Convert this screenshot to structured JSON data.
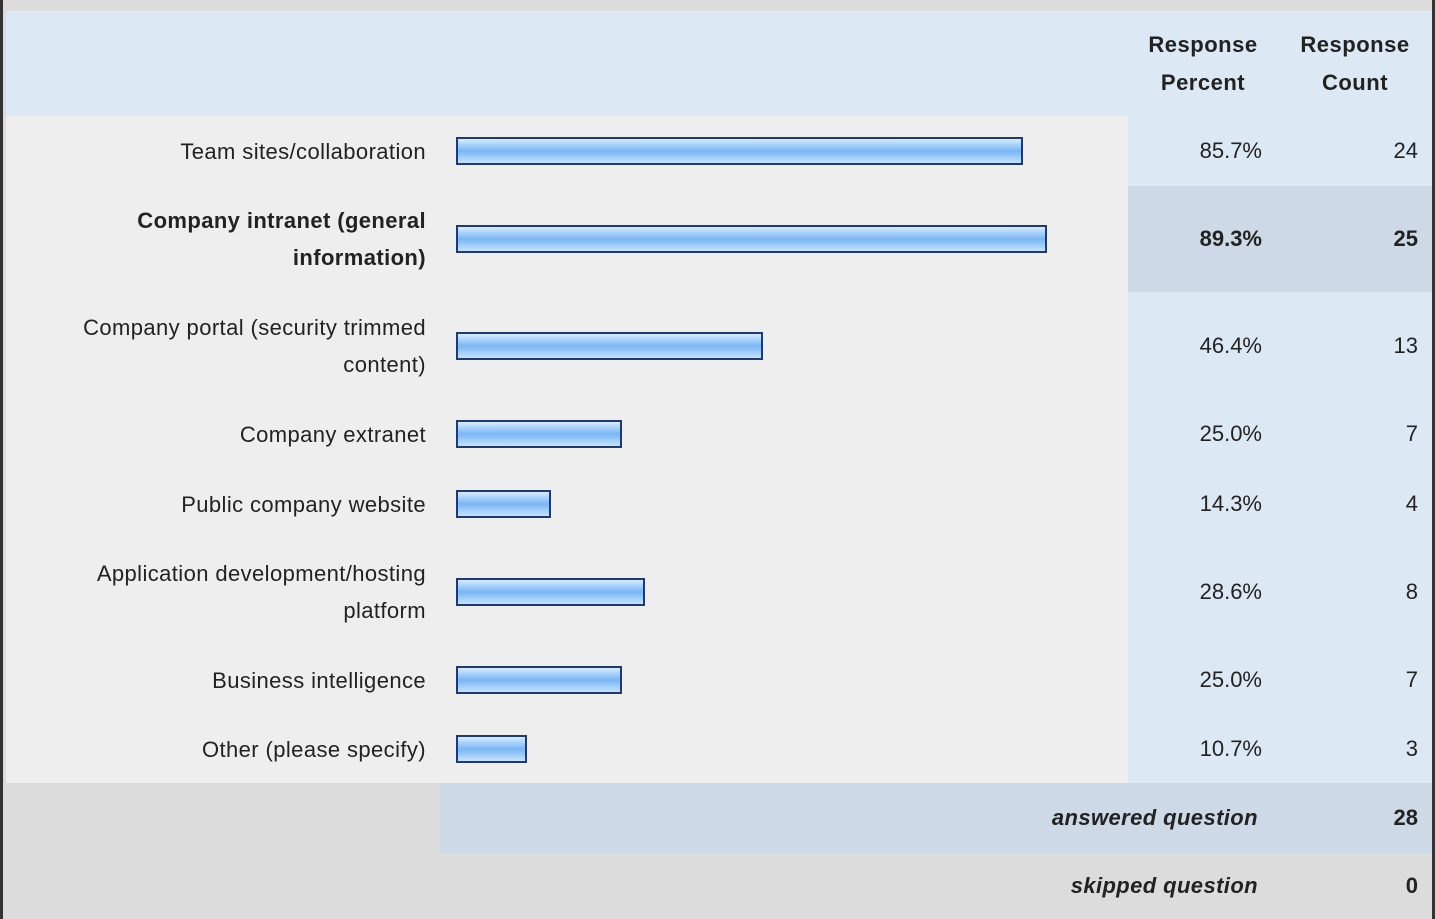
{
  "header": {
    "percent_label_line1": "Response",
    "percent_label_line2": "Percent",
    "count_label_line1": "Response",
    "count_label_line2": "Count"
  },
  "chart_data": {
    "type": "bar",
    "orientation": "horizontal",
    "xlim": [
      0,
      100
    ],
    "categories": [
      "Team sites/collaboration",
      "Company intranet (general information)",
      "Company portal (security trimmed content)",
      "Company extranet",
      "Public company website",
      "Application development/hosting platform",
      "Business intelligence",
      "Other (please specify)"
    ],
    "percent_values": [
      85.7,
      89.3,
      46.4,
      25.0,
      14.3,
      28.6,
      25.0,
      10.7
    ],
    "rows": [
      {
        "label": "Team sites/collaboration",
        "percent": "85.7%",
        "count": "24",
        "highlight": false
      },
      {
        "label_line1": "Company intranet (general",
        "label_line2": "information)",
        "percent": "89.3%",
        "count": "25",
        "highlight": true
      },
      {
        "label_line1": "Company portal (security trimmed",
        "label_line2": "content)",
        "percent": "46.4%",
        "count": "13",
        "highlight": false
      },
      {
        "label": "Company extranet",
        "percent": "25.0%",
        "count": "7",
        "highlight": false
      },
      {
        "label": "Public company website",
        "percent": "14.3%",
        "count": "4",
        "highlight": false
      },
      {
        "label_line1": "Application development/hosting",
        "label_line2": "platform",
        "percent": "28.6%",
        "count": "8",
        "highlight": false
      },
      {
        "label": "Business intelligence",
        "percent": "25.0%",
        "count": "7",
        "highlight": false
      },
      {
        "label": "Other (please specify)",
        "percent": "10.7%",
        "count": "3",
        "highlight": false
      }
    ],
    "colors": {
      "bar_fill": "#7ab6f4",
      "bar_border": "#1e3a6e"
    }
  },
  "summary": {
    "answered_label": "answered question",
    "answered_value": "28",
    "skipped_label": "skipped question",
    "skipped_value": "0"
  }
}
